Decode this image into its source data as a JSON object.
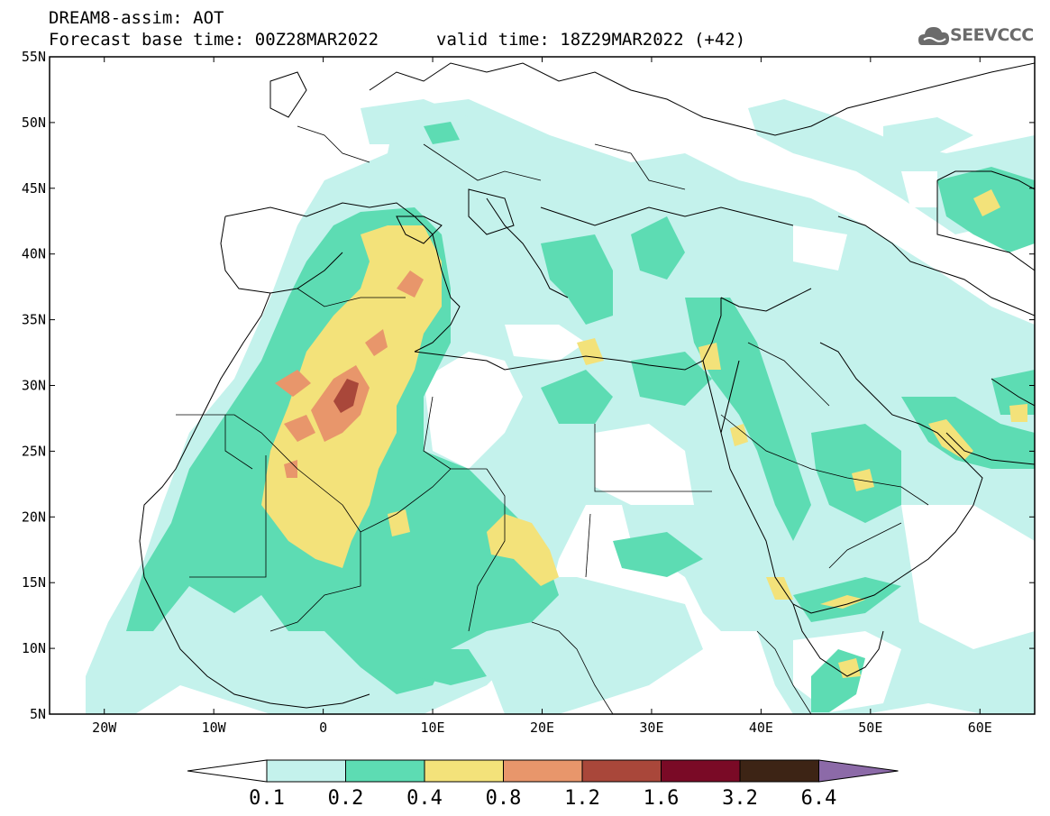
{
  "header": {
    "title": "DREAM8-assim: AOT",
    "base_time": "Forecast base time: 00Z28MAR2022",
    "valid_time": "valid time: 18Z29MAR2022 (+42)"
  },
  "logo": {
    "text": "SEEVCCC",
    "icon": "cloud-logo-icon",
    "color": "#6b6b6b"
  },
  "map": {
    "projection": "lat-lon",
    "lon_range": [
      -25,
      65
    ],
    "lat_range": [
      5,
      55
    ],
    "lat_labels": [
      {
        "lat": 55,
        "label": "55N"
      },
      {
        "lat": 50,
        "label": "50N"
      },
      {
        "lat": 45,
        "label": "45N"
      },
      {
        "lat": 40,
        "label": "40N"
      },
      {
        "lat": 35,
        "label": "35N"
      },
      {
        "lat": 30,
        "label": "30N"
      },
      {
        "lat": 25,
        "label": "25N"
      },
      {
        "lat": 20,
        "label": "20N"
      },
      {
        "lat": 15,
        "label": "15N"
      },
      {
        "lat": 10,
        "label": "10N"
      },
      {
        "lat": 5,
        "label": "5N"
      }
    ],
    "lon_labels": [
      {
        "lon": -20,
        "label": "20W"
      },
      {
        "lon": -10,
        "label": "10W"
      },
      {
        "lon": 0,
        "label": "0"
      },
      {
        "lon": 10,
        "label": "10E"
      },
      {
        "lon": 20,
        "label": "20E"
      },
      {
        "lon": 30,
        "label": "30E"
      },
      {
        "lon": 40,
        "label": "40E"
      },
      {
        "lon": 50,
        "label": "50E"
      },
      {
        "lon": 60,
        "label": "60E"
      }
    ]
  },
  "colorbar": {
    "levels": [
      "0.1",
      "0.2",
      "0.4",
      "0.8",
      "1.2",
      "1.6",
      "3.2",
      "6.4"
    ],
    "colors": [
      "#c4f2ec",
      "#5ddcb3",
      "#f3e27a",
      "#e8966b",
      "#a9473a",
      "#7a0a26",
      "#3d2415",
      "#8c6aa8"
    ],
    "under_color": "#ffffff"
  }
}
